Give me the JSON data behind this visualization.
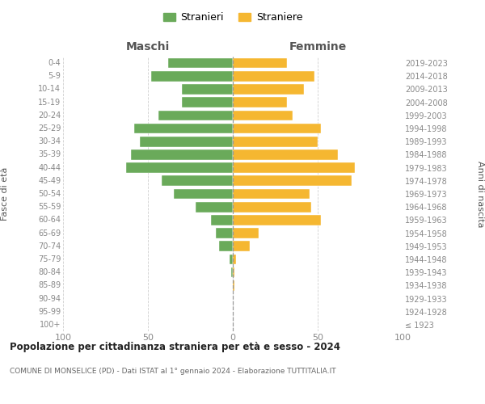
{
  "age_groups": [
    "100+",
    "95-99",
    "90-94",
    "85-89",
    "80-84",
    "75-79",
    "70-74",
    "65-69",
    "60-64",
    "55-59",
    "50-54",
    "45-49",
    "40-44",
    "35-39",
    "30-34",
    "25-29",
    "20-24",
    "15-19",
    "10-14",
    "5-9",
    "0-4"
  ],
  "birth_years": [
    "≤ 1923",
    "1924-1928",
    "1929-1933",
    "1934-1938",
    "1939-1943",
    "1944-1948",
    "1949-1953",
    "1954-1958",
    "1959-1963",
    "1964-1968",
    "1969-1973",
    "1974-1978",
    "1979-1983",
    "1984-1988",
    "1989-1993",
    "1994-1998",
    "1999-2003",
    "2004-2008",
    "2009-2013",
    "2014-2018",
    "2019-2023"
  ],
  "maschi": [
    0,
    0,
    0,
    0,
    1,
    2,
    8,
    10,
    13,
    22,
    35,
    42,
    63,
    60,
    55,
    58,
    44,
    30,
    30,
    48,
    38
  ],
  "femmine": [
    0,
    0,
    0,
    1,
    1,
    2,
    10,
    15,
    52,
    46,
    45,
    70,
    72,
    62,
    50,
    52,
    35,
    32,
    42,
    48,
    32
  ],
  "maschi_color": "#6aaa5a",
  "femmine_color": "#f5b731",
  "title": "Popolazione per cittadinanza straniera per età e sesso - 2024",
  "subtitle": "COMUNE DI MONSELICE (PD) - Dati ISTAT al 1° gennaio 2024 - Elaborazione TUTTITALIA.IT",
  "label_left": "Maschi",
  "label_right": "Femmine",
  "ylabel_left": "Fasce di età",
  "ylabel_right": "Anni di nascita",
  "legend_maschi": "Stranieri",
  "legend_femmine": "Straniere",
  "xlim": 100,
  "bg_color": "#ffffff",
  "grid_color": "#d0d0d0",
  "tick_color": "#888888",
  "label_color": "#555555"
}
